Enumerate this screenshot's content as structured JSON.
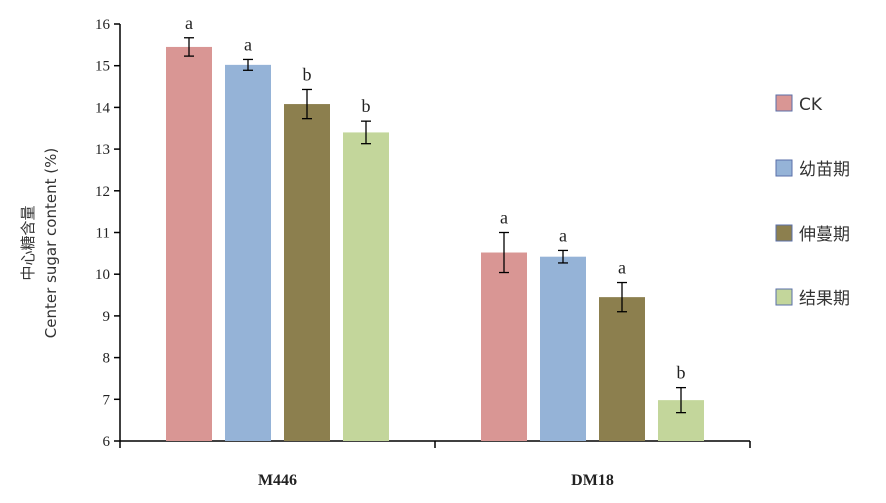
{
  "chart_data": {
    "type": "bar",
    "title": "",
    "xlabel": "",
    "ylabel_lines": [
      "中心糖含量",
      "Center sugar content (%)"
    ],
    "ylim": [
      6,
      16
    ],
    "yticks": [
      6,
      7,
      8,
      9,
      10,
      11,
      12,
      13,
      14,
      15,
      16
    ],
    "categories": [
      "M446",
      "DM18"
    ],
    "series": [
      {
        "name": "CK",
        "color": "#d99694",
        "values": [
          15.45,
          10.52
        ],
        "errors": [
          0.22,
          0.48
        ],
        "sig": [
          "a",
          "a"
        ]
      },
      {
        "name": "幼苗期",
        "color": "#95b3d7",
        "values": [
          15.02,
          10.42
        ],
        "errors": [
          0.13,
          0.15
        ],
        "sig": [
          "a",
          "a"
        ]
      },
      {
        "name": "伸蔓期",
        "color": "#8c7f4e",
        "values": [
          14.08,
          9.45
        ],
        "errors": [
          0.35,
          0.35
        ],
        "sig": [
          "b",
          "a"
        ]
      },
      {
        "name": "结果期",
        "color": "#c3d69b",
        "values": [
          13.4,
          6.98
        ],
        "errors": [
          0.27,
          0.3
        ],
        "sig": [
          "b",
          "b"
        ]
      }
    ],
    "legend_position": "right",
    "grid": false
  }
}
